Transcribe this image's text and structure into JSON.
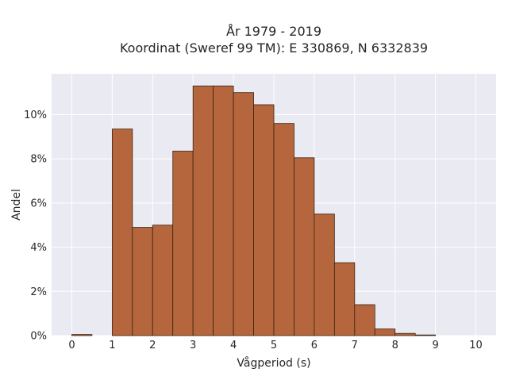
{
  "chart_data": {
    "type": "bar",
    "title_line1": "År 1979 - 2019",
    "title_line2": "Koordinat (Sweref 99 TM): E 330869, N 6332839",
    "xlabel": "Vågperiod (s)",
    "ylabel": "Andel",
    "bin_width": 0.5,
    "bins": [
      {
        "x": 0.0,
        "value": 0.05
      },
      {
        "x": 0.5,
        "value": 0.0
      },
      {
        "x": 1.0,
        "value": 9.35
      },
      {
        "x": 1.5,
        "value": 4.9
      },
      {
        "x": 2.0,
        "value": 5.0
      },
      {
        "x": 2.5,
        "value": 8.35
      },
      {
        "x": 3.0,
        "value": 11.3
      },
      {
        "x": 3.5,
        "value": 11.3
      },
      {
        "x": 4.0,
        "value": 11.0
      },
      {
        "x": 4.5,
        "value": 10.45
      },
      {
        "x": 5.0,
        "value": 9.6
      },
      {
        "x": 5.5,
        "value": 8.05
      },
      {
        "x": 6.0,
        "value": 5.5
      },
      {
        "x": 6.5,
        "value": 3.3
      },
      {
        "x": 7.0,
        "value": 1.4
      },
      {
        "x": 7.5,
        "value": 0.3
      },
      {
        "x": 8.0,
        "value": 0.1
      },
      {
        "x": 8.5,
        "value": 0.03
      },
      {
        "x": 9.0,
        "value": 0.0
      },
      {
        "x": 9.5,
        "value": 0.0
      }
    ],
    "xlim": [
      -0.5,
      10.5
    ],
    "ylim": [
      0,
      11.85
    ],
    "x_ticks": [
      0,
      1,
      2,
      3,
      4,
      5,
      6,
      7,
      8,
      9,
      10
    ],
    "y_ticks": [
      {
        "value": 0,
        "label": "0%"
      },
      {
        "value": 2,
        "label": "2%"
      },
      {
        "value": 4,
        "label": "4%"
      },
      {
        "value": 6,
        "label": "6%"
      },
      {
        "value": 8,
        "label": "8%"
      },
      {
        "value": 10,
        "label": "10%"
      }
    ],
    "grid": true,
    "colors": {
      "bar_fill": "#b5663c",
      "bar_edge": "#3b2314",
      "plot_bg": "#eaeaf2",
      "grid": "#ffffff"
    }
  }
}
